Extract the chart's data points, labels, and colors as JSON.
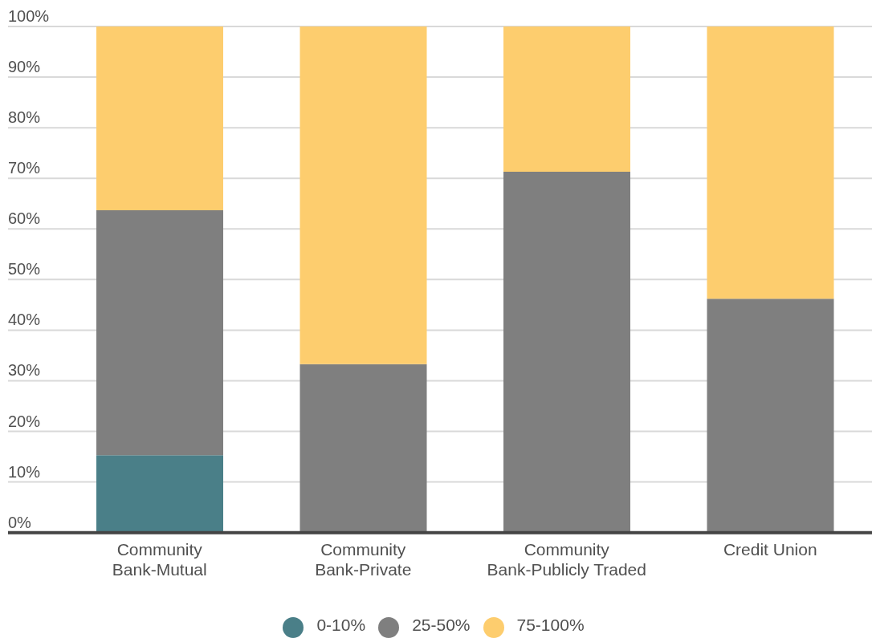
{
  "chart_data": {
    "type": "bar",
    "stacked": true,
    "categories": [
      "Community Bank-Mutual",
      "Community Bank-Private",
      "Community Bank-Publicly Traded",
      "Credit Union"
    ],
    "series": [
      {
        "name": "0-10%",
        "color": "#4a7f88",
        "values": [
          15.3,
          0,
          0,
          0
        ]
      },
      {
        "name": "25-50%",
        "color": "#7f7f7f",
        "values": [
          48.4,
          33.3,
          71.3,
          46.2
        ]
      },
      {
        "name": "75-100%",
        "color": "#fdcd6e",
        "values": [
          36.3,
          66.7,
          28.7,
          53.8
        ]
      }
    ],
    "ylim": [
      0,
      100
    ],
    "yticks": [
      {
        "value": 0,
        "label": "0%"
      },
      {
        "value": 10,
        "label": "10%"
      },
      {
        "value": 20,
        "label": "20%"
      },
      {
        "value": 30,
        "label": "30%"
      },
      {
        "value": 40,
        "label": "40%"
      },
      {
        "value": 50,
        "label": "50%"
      },
      {
        "value": 60,
        "label": "60%"
      },
      {
        "value": 70,
        "label": "70%"
      },
      {
        "value": 80,
        "label": "80%"
      },
      {
        "value": 90,
        "label": "90%"
      },
      {
        "value": 100,
        "label": "100%"
      }
    ],
    "grid": "y",
    "legend": "bottom"
  }
}
